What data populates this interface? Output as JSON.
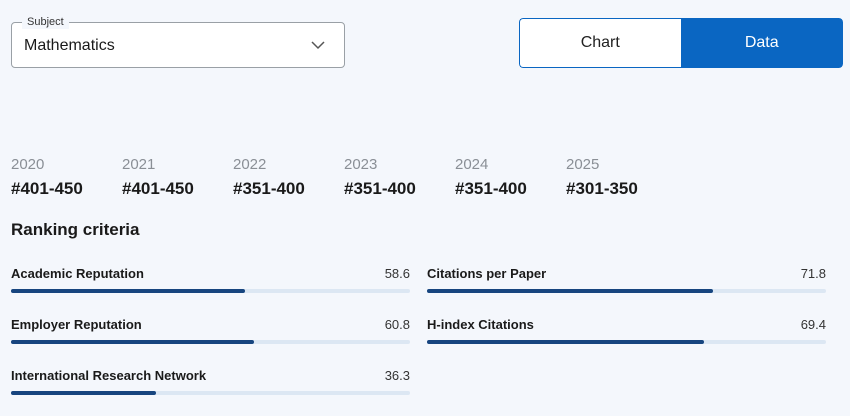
{
  "subject": {
    "legend": "Subject",
    "value": "Mathematics",
    "dropdown_icon": "chevron-down-icon"
  },
  "view_toggle": {
    "chart_label": "Chart",
    "data_label": "Data",
    "selected": "Data",
    "active_color": "#0a66c2"
  },
  "rankings": [
    {
      "year": "2020",
      "rank": "#401-450"
    },
    {
      "year": "2021",
      "rank": "#401-450"
    },
    {
      "year": "2022",
      "rank": "#351-400"
    },
    {
      "year": "2023",
      "rank": "#351-400"
    },
    {
      "year": "2024",
      "rank": "#351-400"
    },
    {
      "year": "2025",
      "rank": "#301-350"
    }
  ],
  "criteria": {
    "title": "Ranking criteria",
    "max_score": 100,
    "bar_color": "#17457f",
    "track_color": "#dce7f3",
    "items": [
      {
        "name": "Academic Reputation",
        "score": "58.6"
      },
      {
        "name": "Citations per Paper",
        "score": "71.8"
      },
      {
        "name": "Employer Reputation",
        "score": "60.8"
      },
      {
        "name": "H-index Citations",
        "score": "69.4"
      },
      {
        "name": "International Research Network",
        "score": "36.3"
      }
    ]
  }
}
